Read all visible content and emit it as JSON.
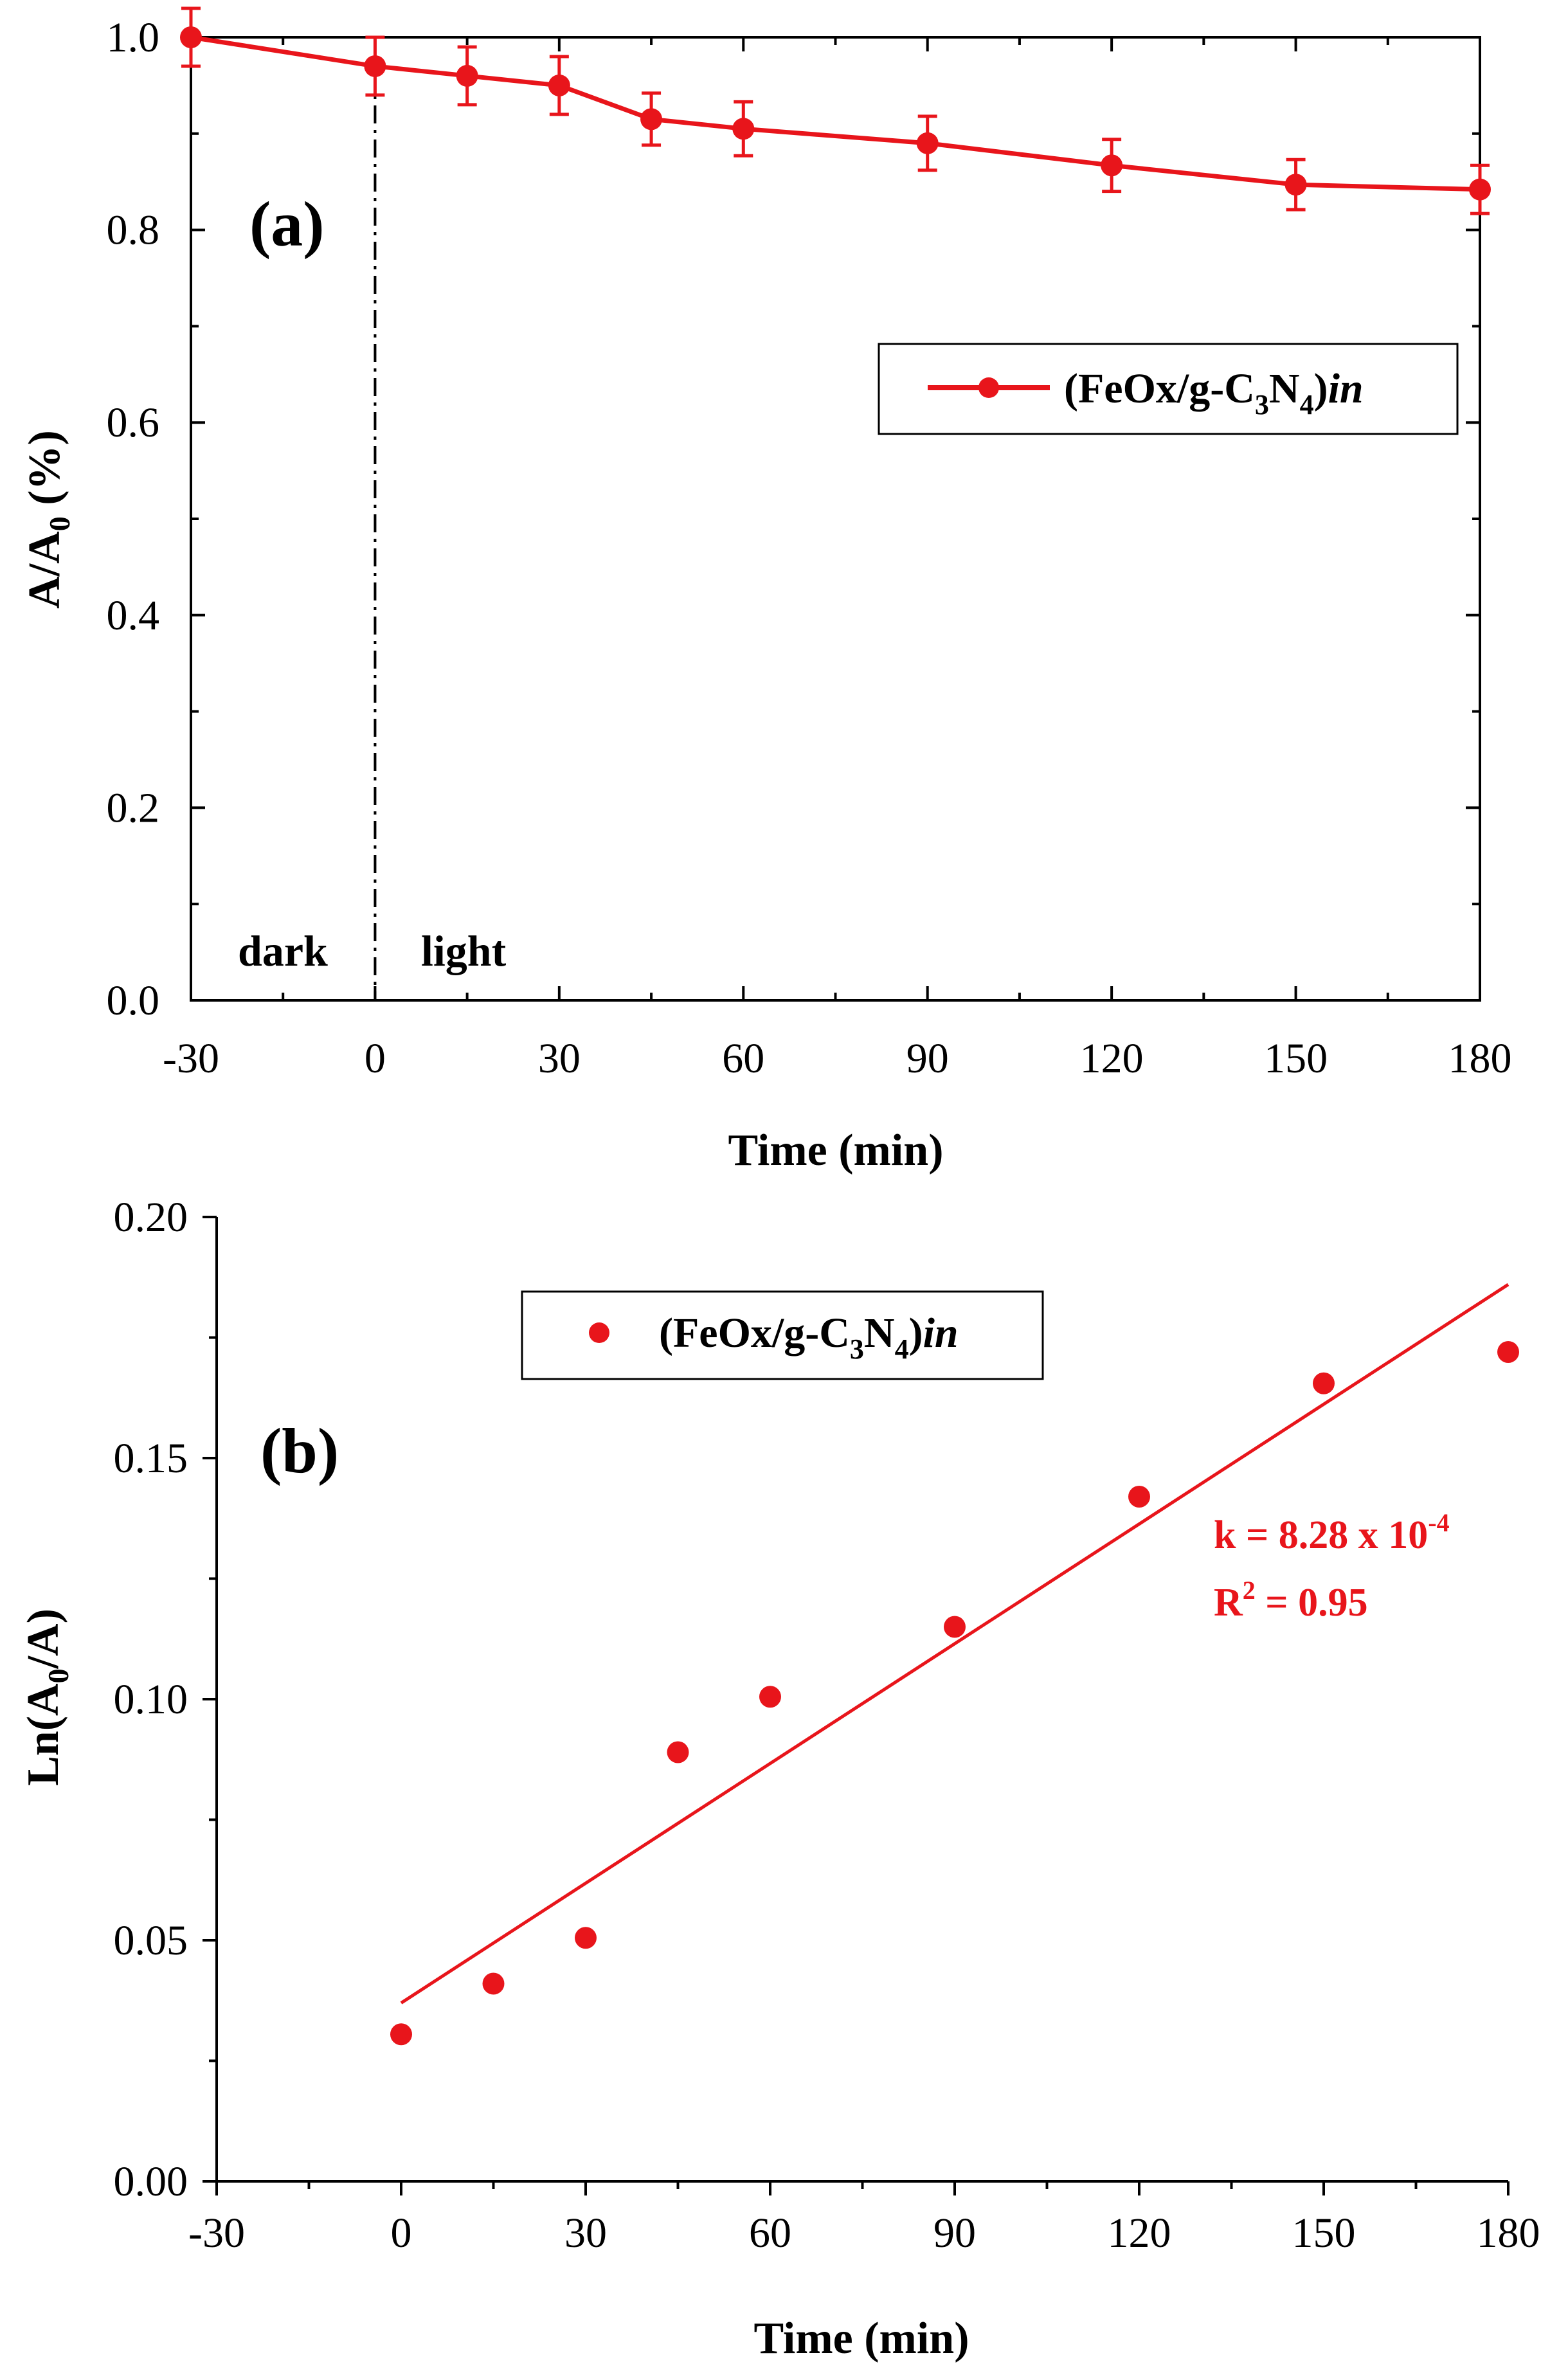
{
  "colors": {
    "series": "#e8151b",
    "axis": "#000000"
  },
  "chart_data": [
    {
      "type": "line",
      "panel_label": "(a)",
      "xlabel": "Time (min)",
      "ylabel": {
        "main": "A/A",
        "sub": "0",
        "unit": " (%)"
      },
      "xlim": [
        -30,
        180
      ],
      "ylim": [
        0.0,
        1.0
      ],
      "xticks": [
        "-30",
        "0",
        "30",
        "60",
        "90",
        "120",
        "150",
        "180"
      ],
      "yticks": [
        "0.0",
        "0.2",
        "0.4",
        "0.6",
        "0.8",
        "1.0"
      ],
      "series": [
        {
          "name": {
            "pre": "(FeOx/g-C",
            "sub1": "3",
            "mid": "N",
            "sub2": "4",
            "post": ")",
            "ital": "in"
          },
          "marker": "circle",
          "line": true,
          "x": [
            -30,
            0,
            15,
            30,
            45,
            60,
            90,
            120,
            150,
            180
          ],
          "y": [
            1.0,
            0.97,
            0.96,
            0.95,
            0.915,
            0.905,
            0.89,
            0.867,
            0.847,
            0.842
          ],
          "error": [
            0.03,
            0.03,
            0.03,
            0.03,
            0.027,
            0.028,
            0.028,
            0.027,
            0.026,
            0.025
          ]
        }
      ],
      "divider": {
        "x": 0,
        "style": "dash-dot"
      },
      "regions": {
        "left": "dark",
        "right": "light"
      },
      "legend": "center-right",
      "grid": false
    },
    {
      "type": "scatter",
      "panel_label": "(b)",
      "xlabel": "Time (min)",
      "ylabel": {
        "pre": "Ln(A",
        "sub": "0",
        "post": "/A)"
      },
      "xlim": [
        -30,
        180
      ],
      "ylim": [
        0.0,
        0.2
      ],
      "xticks": [
        "-30",
        "0",
        "30",
        "60",
        "90",
        "120",
        "150",
        "180"
      ],
      "yticks": [
        "0.00",
        "0.05",
        "0.10",
        "0.15",
        "0.20"
      ],
      "series": [
        {
          "name": {
            "pre": "(FeOx/g-C",
            "sub1": "3",
            "mid": "N",
            "sub2": "4",
            "post": ")",
            "ital": "in"
          },
          "marker": "circle",
          "x": [
            0,
            15,
            30,
            45,
            60,
            90,
            120,
            150,
            180
          ],
          "y": [
            0.0305,
            0.041,
            0.0505,
            0.089,
            0.1005,
            0.115,
            0.142,
            0.1655,
            0.172
          ]
        }
      ],
      "fit_line": {
        "x": [
          0,
          180
        ],
        "y": [
          0.037,
          0.186
        ]
      },
      "annotation": {
        "k_pre": "k = 8.28 x 10",
        "k_exp": "-4",
        "r_pre": "R",
        "r_exp": "2",
        "r_post": " = 0.95"
      },
      "legend": "top-center",
      "grid": false
    }
  ]
}
